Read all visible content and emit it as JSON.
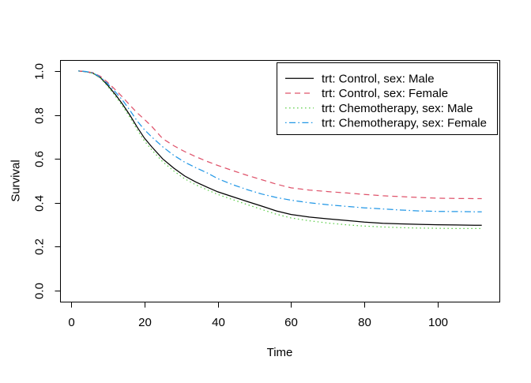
{
  "figure": {
    "background": "#ffffff",
    "border_color": "#000000"
  },
  "chart_data": {
    "type": "line",
    "subtype": "survival-step-curves",
    "title": "",
    "xlabel": "Time",
    "ylabel": "Survival",
    "xlim": [
      -3.0,
      116.8
    ],
    "ylim": [
      -0.05,
      1.05
    ],
    "grid": false,
    "xticks": {
      "values": [
        0,
        20,
        40,
        60,
        80,
        100
      ],
      "labels": [
        "0",
        "20",
        "40",
        "60",
        "80",
        "100"
      ]
    },
    "yticks": {
      "values": [
        0.0,
        0.2,
        0.4,
        0.6,
        0.8,
        1.0
      ],
      "labels": [
        "0.0",
        "0.2",
        "0.4",
        "0.6",
        "0.8",
        "1.0"
      ]
    },
    "legend": {
      "position": "topright",
      "border": true
    },
    "x": [
      2,
      4,
      6,
      8,
      10,
      12,
      14,
      16,
      18,
      20,
      22,
      25,
      28,
      31,
      34,
      37,
      40,
      44,
      48,
      52,
      56,
      60,
      65,
      70,
      75,
      80,
      85,
      90,
      95,
      100,
      105,
      110,
      112
    ],
    "series": [
      {
        "name": "trt: Control, sex: Male",
        "color": "#000000",
        "linetype": "solid",
        "values": [
          1.0,
          0.997,
          0.99,
          0.97,
          0.935,
          0.895,
          0.85,
          0.8,
          0.745,
          0.695,
          0.655,
          0.6,
          0.558,
          0.522,
          0.495,
          0.472,
          0.45,
          0.428,
          0.406,
          0.385,
          0.363,
          0.347,
          0.335,
          0.327,
          0.32,
          0.312,
          0.307,
          0.304,
          0.302,
          0.3,
          0.299,
          0.298,
          0.298
        ]
      },
      {
        "name": "trt: Control, sex: Female",
        "color": "#DF536B",
        "linetype": "dashed",
        "values": [
          1.0,
          0.998,
          0.992,
          0.976,
          0.948,
          0.916,
          0.882,
          0.845,
          0.81,
          0.78,
          0.748,
          0.692,
          0.66,
          0.633,
          0.61,
          0.589,
          0.57,
          0.547,
          0.525,
          0.505,
          0.485,
          0.468,
          0.458,
          0.451,
          0.445,
          0.438,
          0.432,
          0.428,
          0.424,
          0.421,
          0.42,
          0.419,
          0.419
        ]
      },
      {
        "name": "trt: Chemotherapy, sex: Male",
        "color": "#61D04F",
        "linetype": "dotted",
        "values": [
          1.0,
          0.997,
          0.989,
          0.967,
          0.93,
          0.888,
          0.842,
          0.79,
          0.733,
          0.682,
          0.641,
          0.587,
          0.545,
          0.509,
          0.482,
          0.46,
          0.438,
          0.415,
          0.392,
          0.37,
          0.348,
          0.331,
          0.318,
          0.308,
          0.3,
          0.294,
          0.29,
          0.287,
          0.285,
          0.284,
          0.283,
          0.283,
          0.283
        ]
      },
      {
        "name": "trt: Chemotherapy, sex: Female",
        "color": "#2297E6",
        "linetype": "dotdash",
        "values": [
          1.0,
          0.998,
          0.991,
          0.972,
          0.942,
          0.906,
          0.868,
          0.822,
          0.773,
          0.733,
          0.7,
          0.655,
          0.616,
          0.585,
          0.56,
          0.537,
          0.51,
          0.483,
          0.46,
          0.44,
          0.424,
          0.412,
          0.4,
          0.391,
          0.384,
          0.377,
          0.372,
          0.367,
          0.363,
          0.361,
          0.36,
          0.359,
          0.359
        ]
      }
    ]
  }
}
